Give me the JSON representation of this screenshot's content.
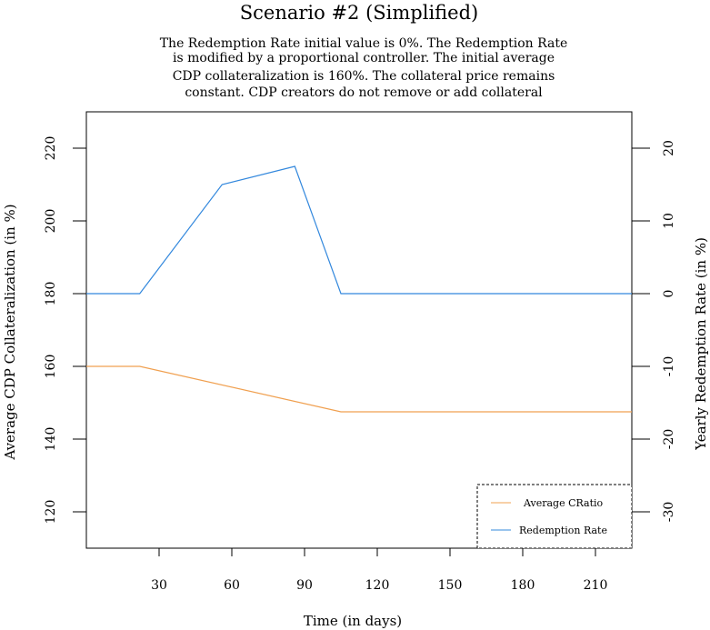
{
  "chart_data": {
    "type": "line",
    "title": "Scenario #2 (Simplified)",
    "subtitle_lines": [
      "The Redemption Rate initial value is 0%. The Redemption Rate",
      "is modified by a proportional controller. The initial average",
      "CDP collateralization is 160%. The collateral price remains",
      "constant. CDP creators do not remove or add collateral"
    ],
    "xlabel": "Time (in days)",
    "ylabel_left": "Average CDP Collateralization (in %)",
    "ylabel_right": "Yearly Redemption Rate (in %)",
    "xlim": [
      0,
      225
    ],
    "ylim_left": [
      110,
      230
    ],
    "ylim_right": [
      -35,
      25
    ],
    "x_ticks": [
      30,
      60,
      90,
      120,
      150,
      180,
      210
    ],
    "y_left_ticks": [
      120,
      140,
      160,
      180,
      200,
      220
    ],
    "y_right_ticks": [
      -30,
      -20,
      -10,
      0,
      10,
      20
    ],
    "series": [
      {
        "name": "Average CRatio",
        "axis": "left",
        "color": "#f0a050",
        "x": [
          0,
          22,
          105,
          225
        ],
        "y": [
          160,
          160,
          147.5,
          147.5
        ]
      },
      {
        "name": "Redemption Rate",
        "axis": "right",
        "color": "#3388dd",
        "x": [
          0,
          22,
          56,
          86,
          105,
          225
        ],
        "y": [
          0,
          0,
          15,
          17.5,
          0,
          0
        ]
      }
    ],
    "legend": {
      "position": "bottom-right",
      "entries": [
        "Average CRatio",
        "Redemption Rate"
      ]
    }
  }
}
